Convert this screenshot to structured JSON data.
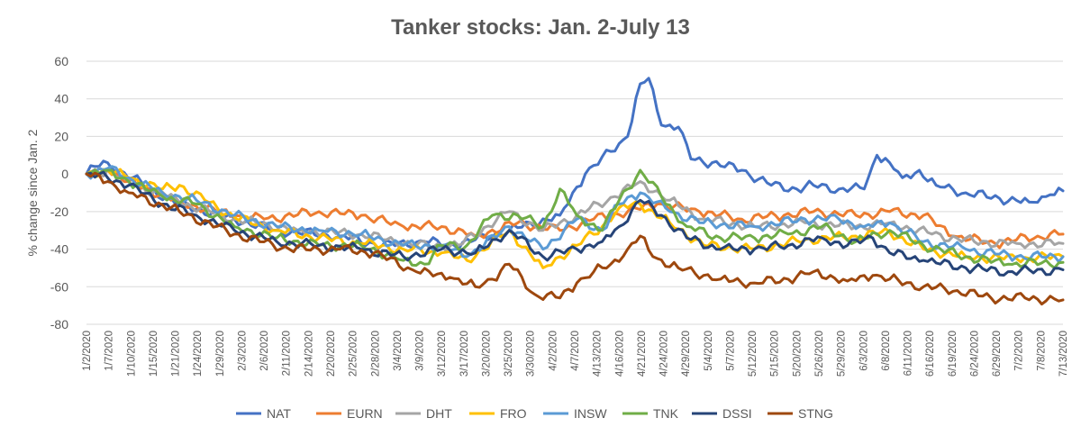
{
  "chart_data": {
    "type": "line",
    "title": "Tanker stocks: Jan. 2-July 13",
    "xlabel": "",
    "ylabel": "% change since Jan. 2",
    "ylim": [
      -80,
      60
    ],
    "yticks": [
      60,
      40,
      20,
      0,
      -20,
      -40,
      -60,
      -80
    ],
    "grid": true,
    "legend": "bottom",
    "x_tick_labels": [
      "1/2/2020",
      "1/7/2020",
      "1/10/2020",
      "1/15/2020",
      "1/21/2020",
      "1/24/2020",
      "1/29/2020",
      "2/3/2020",
      "2/6/2020",
      "2/11/2020",
      "2/14/2020",
      "2/20/2020",
      "2/25/2020",
      "2/28/2020",
      "3/4/2020",
      "3/9/2020",
      "3/12/2020",
      "3/17/2020",
      "3/20/2020",
      "3/25/2020",
      "3/30/2020",
      "4/2/2020",
      "4/7/2020",
      "4/13/2020",
      "4/16/2020",
      "4/21/2020",
      "4/24/2020",
      "4/29/2020",
      "5/4/2020",
      "5/7/2020",
      "5/12/2020",
      "5/15/2020",
      "5/20/2020",
      "5/26/2020",
      "5/29/2020",
      "6/3/2020",
      "6/8/2020",
      "6/11/2020",
      "6/16/2020",
      "6/19/2020",
      "6/24/2020",
      "6/29/2020",
      "7/2/2020",
      "7/8/2020",
      "7/13/2020"
    ],
    "series": [
      {
        "name": "NAT",
        "color": "#4472C4",
        "keyframes": [
          [
            0,
            0
          ],
          [
            2,
            4
          ],
          [
            5,
            6
          ],
          [
            8,
            2
          ],
          [
            15,
            -8
          ],
          [
            22,
            -16
          ],
          [
            35,
            -24
          ],
          [
            45,
            -30
          ],
          [
            60,
            -33
          ],
          [
            70,
            -38
          ],
          [
            80,
            -36
          ],
          [
            87,
            -38
          ],
          [
            100,
            -30
          ],
          [
            112,
            -22
          ],
          [
            118,
            0
          ],
          [
            124,
            12
          ],
          [
            128,
            20
          ],
          [
            131,
            48
          ],
          [
            133,
            51
          ],
          [
            136,
            26
          ],
          [
            140,
            25
          ],
          [
            143,
            8
          ],
          [
            148,
            6
          ],
          [
            155,
            2
          ],
          [
            162,
            -6
          ],
          [
            168,
            -8
          ],
          [
            172,
            -6
          ],
          [
            178,
            -8
          ],
          [
            184,
            -8
          ],
          [
            187,
            10
          ],
          [
            190,
            6
          ],
          [
            193,
            -2
          ],
          [
            197,
            2
          ],
          [
            201,
            -6
          ],
          [
            208,
            -10
          ],
          [
            216,
            -13
          ],
          [
            223,
            -15
          ],
          [
            228,
            -11
          ],
          [
            231,
            -9
          ]
        ]
      },
      {
        "name": "EURN",
        "color": "#ED7D31",
        "keyframes": [
          [
            0,
            0
          ],
          [
            5,
            2
          ],
          [
            10,
            -4
          ],
          [
            22,
            -15
          ],
          [
            35,
            -22
          ],
          [
            42,
            -24
          ],
          [
            55,
            -20
          ],
          [
            65,
            -22
          ],
          [
            75,
            -28
          ],
          [
            84,
            -28
          ],
          [
            92,
            -33
          ],
          [
            102,
            -26
          ],
          [
            112,
            -30
          ],
          [
            120,
            -24
          ],
          [
            128,
            -20
          ],
          [
            135,
            -16
          ],
          [
            145,
            -20
          ],
          [
            155,
            -24
          ],
          [
            165,
            -22
          ],
          [
            172,
            -20
          ],
          [
            182,
            -22
          ],
          [
            190,
            -20
          ],
          [
            198,
            -22
          ],
          [
            205,
            -33
          ],
          [
            215,
            -37
          ],
          [
            225,
            -33
          ],
          [
            231,
            -32
          ]
        ]
      },
      {
        "name": "DHT",
        "color": "#A5A5A5",
        "keyframes": [
          [
            0,
            0
          ],
          [
            5,
            2
          ],
          [
            10,
            -4
          ],
          [
            22,
            -15
          ],
          [
            35,
            -24
          ],
          [
            50,
            -30
          ],
          [
            65,
            -32
          ],
          [
            78,
            -38
          ],
          [
            88,
            -38
          ],
          [
            100,
            -20
          ],
          [
            108,
            -30
          ],
          [
            116,
            -22
          ],
          [
            125,
            -12
          ],
          [
            131,
            -4
          ],
          [
            138,
            -14
          ],
          [
            146,
            -24
          ],
          [
            158,
            -28
          ],
          [
            170,
            -26
          ],
          [
            182,
            -28
          ],
          [
            190,
            -26
          ],
          [
            200,
            -32
          ],
          [
            210,
            -36
          ],
          [
            220,
            -37
          ],
          [
            231,
            -37
          ]
        ]
      },
      {
        "name": "FRO",
        "color": "#FFC000",
        "keyframes": [
          [
            0,
            0
          ],
          [
            5,
            2
          ],
          [
            10,
            -2
          ],
          [
            18,
            -8
          ],
          [
            22,
            -6
          ],
          [
            28,
            -14
          ],
          [
            35,
            -23
          ],
          [
            45,
            -30
          ],
          [
            55,
            -34
          ],
          [
            65,
            -37
          ],
          [
            75,
            -40
          ],
          [
            84,
            -42
          ],
          [
            90,
            -46
          ],
          [
            100,
            -30
          ],
          [
            108,
            -50
          ],
          [
            116,
            -38
          ],
          [
            122,
            -28
          ],
          [
            126,
            -18
          ],
          [
            131,
            -16
          ],
          [
            138,
            -26
          ],
          [
            146,
            -38
          ],
          [
            158,
            -40
          ],
          [
            170,
            -35
          ],
          [
            182,
            -33
          ],
          [
            190,
            -31
          ],
          [
            198,
            -40
          ],
          [
            208,
            -44
          ],
          [
            220,
            -45
          ],
          [
            231,
            -44
          ]
        ]
      },
      {
        "name": "INSW",
        "color": "#5B9BD5",
        "keyframes": [
          [
            0,
            0
          ],
          [
            5,
            3
          ],
          [
            10,
            -2
          ],
          [
            18,
            -10
          ],
          [
            26,
            -14
          ],
          [
            35,
            -22
          ],
          [
            45,
            -28
          ],
          [
            55,
            -30
          ],
          [
            65,
            -32
          ],
          [
            75,
            -38
          ],
          [
            84,
            -38
          ],
          [
            90,
            -44
          ],
          [
            100,
            -28
          ],
          [
            108,
            -40
          ],
          [
            116,
            -24
          ],
          [
            122,
            -30
          ],
          [
            126,
            -16
          ],
          [
            131,
            -10
          ],
          [
            138,
            -20
          ],
          [
            146,
            -26
          ],
          [
            158,
            -28
          ],
          [
            170,
            -24
          ],
          [
            178,
            -24
          ],
          [
            184,
            -28
          ],
          [
            190,
            -26
          ],
          [
            198,
            -36
          ],
          [
            208,
            -40
          ],
          [
            220,
            -44
          ],
          [
            231,
            -44
          ]
        ]
      },
      {
        "name": "TNK",
        "color": "#70AD47",
        "keyframes": [
          [
            0,
            0
          ],
          [
            5,
            2
          ],
          [
            10,
            -4
          ],
          [
            18,
            -12
          ],
          [
            26,
            -16
          ],
          [
            35,
            -28
          ],
          [
            45,
            -34
          ],
          [
            55,
            -38
          ],
          [
            65,
            -38
          ],
          [
            75,
            -46
          ],
          [
            80,
            -48
          ],
          [
            84,
            -38
          ],
          [
            90,
            -38
          ],
          [
            96,
            -22
          ],
          [
            102,
            -22
          ],
          [
            108,
            -28
          ],
          [
            112,
            -8
          ],
          [
            116,
            -22
          ],
          [
            122,
            -30
          ],
          [
            126,
            -14
          ],
          [
            131,
            2
          ],
          [
            136,
            -12
          ],
          [
            142,
            -28
          ],
          [
            150,
            -34
          ],
          [
            158,
            -34
          ],
          [
            166,
            -32
          ],
          [
            174,
            -28
          ],
          [
            182,
            -36
          ],
          [
            190,
            -30
          ],
          [
            198,
            -38
          ],
          [
            208,
            -44
          ],
          [
            218,
            -48
          ],
          [
            231,
            -47
          ]
        ]
      },
      {
        "name": "DSSI",
        "color": "#264478",
        "keyframes": [
          [
            0,
            0
          ],
          [
            5,
            -2
          ],
          [
            10,
            -6
          ],
          [
            18,
            -16
          ],
          [
            26,
            -22
          ],
          [
            35,
            -30
          ],
          [
            45,
            -36
          ],
          [
            55,
            -38
          ],
          [
            65,
            -40
          ],
          [
            75,
            -44
          ],
          [
            84,
            -40
          ],
          [
            92,
            -42
          ],
          [
            100,
            -30
          ],
          [
            108,
            -44
          ],
          [
            116,
            -40
          ],
          [
            122,
            -36
          ],
          [
            126,
            -28
          ],
          [
            131,
            -14
          ],
          [
            136,
            -22
          ],
          [
            142,
            -34
          ],
          [
            150,
            -40
          ],
          [
            158,
            -40
          ],
          [
            166,
            -38
          ],
          [
            174,
            -34
          ],
          [
            180,
            -38
          ],
          [
            186,
            -34
          ],
          [
            190,
            -42
          ],
          [
            198,
            -46
          ],
          [
            208,
            -50
          ],
          [
            218,
            -52
          ],
          [
            231,
            -51
          ]
        ]
      },
      {
        "name": "STNG",
        "color": "#9E480E",
        "keyframes": [
          [
            0,
            0
          ],
          [
            5,
            -4
          ],
          [
            10,
            -10
          ],
          [
            22,
            -20
          ],
          [
            35,
            -32
          ],
          [
            48,
            -40
          ],
          [
            60,
            -40
          ],
          [
            68,
            -42
          ],
          [
            78,
            -52
          ],
          [
            86,
            -55
          ],
          [
            92,
            -60
          ],
          [
            96,
            -56
          ],
          [
            100,
            -48
          ],
          [
            106,
            -64
          ],
          [
            112,
            -66
          ],
          [
            116,
            -58
          ],
          [
            120,
            -52
          ],
          [
            124,
            -48
          ],
          [
            128,
            -40
          ],
          [
            131,
            -33
          ],
          [
            134,
            -44
          ],
          [
            140,
            -50
          ],
          [
            150,
            -56
          ],
          [
            158,
            -58
          ],
          [
            166,
            -56
          ],
          [
            172,
            -52
          ],
          [
            180,
            -57
          ],
          [
            186,
            -54
          ],
          [
            190,
            -56
          ],
          [
            198,
            -60
          ],
          [
            206,
            -62
          ],
          [
            214,
            -66
          ],
          [
            222,
            -66
          ],
          [
            231,
            -67
          ]
        ]
      }
    ]
  }
}
